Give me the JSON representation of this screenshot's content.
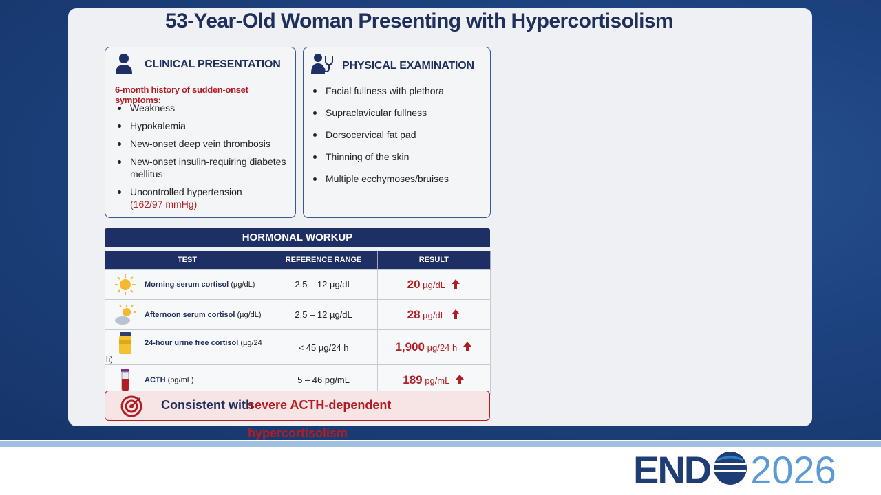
{
  "title": "53-Year-Old Woman Presenting with Hypercortisolism",
  "clinical_presentation": {
    "heading": "CLINICAL PRESENTATION",
    "intro": "6-month history of sudden-onset symptoms:",
    "items": [
      "Weakness",
      "Hypokalemia",
      "New-onset deep vein thrombosis",
      "New-onset insulin-requiring diabetes mellitus",
      "Uncontrolled hypertension"
    ],
    "hypertension_reading": "(162/97 mmHg)"
  },
  "physical_examination": {
    "heading": "PHYSICAL EXAMINATION",
    "items": [
      "Facial fullness with plethora",
      "Supraclavicular fullness",
      "Dorsocervical fat pad",
      "Thinning of the skin",
      "Multiple ecchymoses/bruises"
    ]
  },
  "hormonal_workup": {
    "title": "HORMONAL WORKUP",
    "columns": [
      "TEST",
      "REFERENCE RANGE",
      "RESULT"
    ],
    "rows": [
      {
        "test": "Morning serum cortisol",
        "unit": "(µg/dL)",
        "reference": "2.5 – 12 µg/dL",
        "result": "20",
        "result_unit": "µg/dL"
      },
      {
        "test": "Afternoon serum cortisol",
        "unit": "(µg/dL)",
        "reference": "2.5 – 12 µg/dL",
        "result": "28",
        "result_unit": "µg/dL"
      },
      {
        "test": "24-hour urine free cortisol",
        "unit": "(µg/24 h)",
        "reference": "< 45 µg/24 h",
        "result": "1,900",
        "result_unit": "µg/24 h"
      },
      {
        "test": "ACTH",
        "unit": "(pg/mL)",
        "reference": "5 – 46 pg/mL",
        "result": "189",
        "result_unit": "pg/mL"
      }
    ]
  },
  "conclusion": {
    "prefix": "Consistent with",
    "highlight": "severe ACTH-dependent hypercortisolism"
  },
  "logo": {
    "left": "END",
    "right": "2026"
  }
}
